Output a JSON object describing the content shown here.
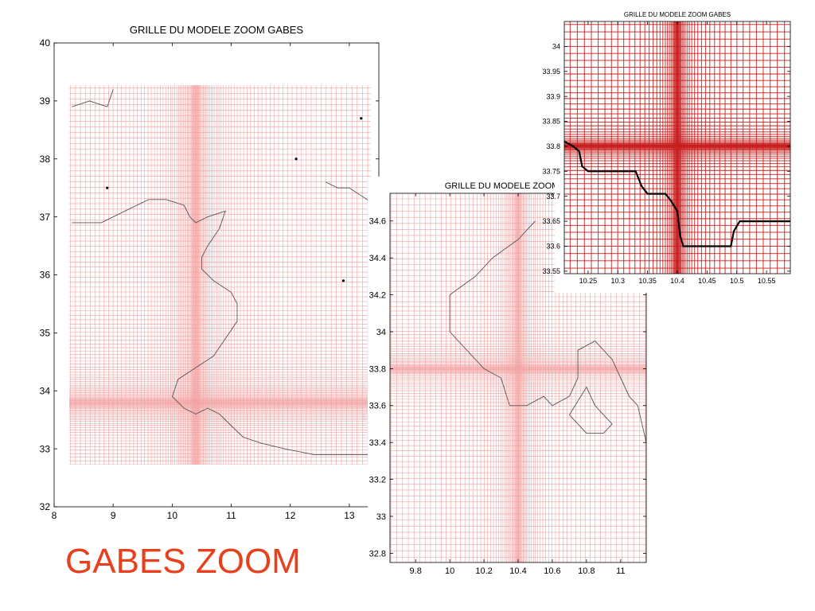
{
  "slide": {
    "caption": "GABES ZOOM",
    "caption_color": "#e8401c"
  },
  "colors": {
    "grid_light": "#f2a0a0",
    "grid_dark": "#c81e1e",
    "coast": "#555555",
    "coast_bold": "#000000"
  },
  "chart_data": [
    {
      "type": "heatmap",
      "title": "GRILLE DU MODELE ZOOM GABES",
      "xlabel": "",
      "ylabel": "",
      "xlim": [
        8,
        13.5
      ],
      "ylim": [
        32,
        40
      ],
      "xticks": [
        8,
        9,
        10,
        11,
        12,
        13
      ],
      "yticks": [
        32,
        33,
        34,
        35,
        36,
        37,
        38,
        39,
        40
      ],
      "grid_extent": {
        "x": [
          8.3,
          13.4
        ],
        "y": [
          32.7,
          39.3
        ]
      },
      "refinement_center": {
        "lon": 10.4,
        "lat": 33.8
      },
      "coastline": [
        [
          8.3,
          36.9
        ],
        [
          8.8,
          36.9
        ],
        [
          9.2,
          37.1
        ],
        [
          9.6,
          37.3
        ],
        [
          9.9,
          37.3
        ],
        [
          10.2,
          37.2
        ],
        [
          10.3,
          37.0
        ],
        [
          10.4,
          36.9
        ],
        [
          10.6,
          37.0
        ],
        [
          10.9,
          37.1
        ],
        [
          10.8,
          36.8
        ],
        [
          10.6,
          36.5
        ],
        [
          10.5,
          36.3
        ],
        [
          10.5,
          36.1
        ],
        [
          10.7,
          35.9
        ],
        [
          11.0,
          35.7
        ],
        [
          11.1,
          35.5
        ],
        [
          11.1,
          35.2
        ],
        [
          10.9,
          34.9
        ],
        [
          10.7,
          34.6
        ],
        [
          10.4,
          34.4
        ],
        [
          10.1,
          34.2
        ],
        [
          10.0,
          33.9
        ],
        [
          10.2,
          33.7
        ],
        [
          10.4,
          33.6
        ],
        [
          10.6,
          33.7
        ],
        [
          10.8,
          33.6
        ],
        [
          11.0,
          33.4
        ],
        [
          11.2,
          33.2
        ],
        [
          11.5,
          33.1
        ],
        [
          11.9,
          33.0
        ],
        [
          12.4,
          32.9
        ],
        [
          12.9,
          32.9
        ],
        [
          13.4,
          32.9
        ]
      ],
      "coastline_north": [
        [
          8.3,
          38.9
        ],
        [
          8.6,
          39.0
        ],
        [
          8.9,
          38.9
        ],
        [
          9.0,
          39.2
        ]
      ],
      "coastline_east": [
        [
          12.6,
          37.6
        ],
        [
          12.8,
          37.5
        ],
        [
          13.0,
          37.5
        ],
        [
          13.3,
          37.3
        ],
        [
          13.4,
          37.2
        ]
      ],
      "island_points": [
        [
          8.9,
          37.5
        ],
        [
          12.1,
          38.0
        ],
        [
          13.2,
          38.7
        ],
        [
          12.9,
          35.9
        ]
      ]
    },
    {
      "type": "heatmap",
      "title": "GRILLE DU MODELE ZOOM GABES",
      "xlabel": "",
      "ylabel": "",
      "xlim": [
        9.65,
        11.15
      ],
      "ylim": [
        32.75,
        34.75
      ],
      "xticks": [
        9.8,
        10,
        10.2,
        10.4,
        10.6,
        10.8,
        11
      ],
      "yticks": [
        32.8,
        33,
        33.2,
        33.4,
        33.6,
        33.8,
        34,
        34.2,
        34.4,
        34.6
      ],
      "refinement_center": {
        "lon": 10.4,
        "lat": 33.8
      },
      "coastline": [
        [
          10.5,
          34.6
        ],
        [
          10.4,
          34.5
        ],
        [
          10.25,
          34.4
        ],
        [
          10.15,
          34.3
        ],
        [
          10.0,
          34.2
        ],
        [
          10.0,
          34.0
        ],
        [
          10.1,
          33.9
        ],
        [
          10.2,
          33.8
        ],
        [
          10.3,
          33.75
        ],
        [
          10.35,
          33.6
        ],
        [
          10.45,
          33.6
        ],
        [
          10.55,
          33.65
        ],
        [
          10.6,
          33.6
        ],
        [
          10.7,
          33.65
        ],
        [
          10.75,
          33.75
        ],
        [
          10.75,
          33.9
        ],
        [
          10.85,
          33.95
        ],
        [
          10.95,
          33.85
        ],
        [
          11.0,
          33.75
        ],
        [
          11.05,
          33.65
        ],
        [
          11.1,
          33.6
        ],
        [
          11.15,
          33.4
        ]
      ],
      "island": [
        [
          10.7,
          33.55
        ],
        [
          10.8,
          33.7
        ],
        [
          10.85,
          33.6
        ],
        [
          10.9,
          33.55
        ],
        [
          10.95,
          33.5
        ],
        [
          10.9,
          33.45
        ],
        [
          10.8,
          33.45
        ],
        [
          10.7,
          33.55
        ]
      ]
    },
    {
      "type": "heatmap",
      "title": "GRILLE DU MODELE ZOOM GABES",
      "xlabel": "",
      "ylabel": "",
      "xlim": [
        10.21,
        10.59
      ],
      "ylim": [
        33.545,
        34.05
      ],
      "xticks": [
        10.25,
        10.3,
        10.35,
        10.4,
        10.45,
        10.5,
        10.55
      ],
      "yticks": [
        33.55,
        33.6,
        33.65,
        33.7,
        33.75,
        33.8,
        33.85,
        33.9,
        33.95,
        34
      ],
      "refinement_center": {
        "lon": 10.4,
        "lat": 33.8
      },
      "coastline": [
        [
          10.21,
          33.81
        ],
        [
          10.225,
          33.8
        ],
        [
          10.235,
          33.79
        ],
        [
          10.24,
          33.76
        ],
        [
          10.25,
          33.75
        ],
        [
          10.33,
          33.75
        ],
        [
          10.34,
          33.72
        ],
        [
          10.35,
          33.705
        ],
        [
          10.38,
          33.705
        ],
        [
          10.39,
          33.69
        ],
        [
          10.4,
          33.67
        ],
        [
          10.405,
          33.62
        ],
        [
          10.41,
          33.6
        ],
        [
          10.49,
          33.6
        ],
        [
          10.495,
          33.63
        ],
        [
          10.505,
          33.65
        ],
        [
          10.59,
          33.65
        ]
      ]
    }
  ]
}
